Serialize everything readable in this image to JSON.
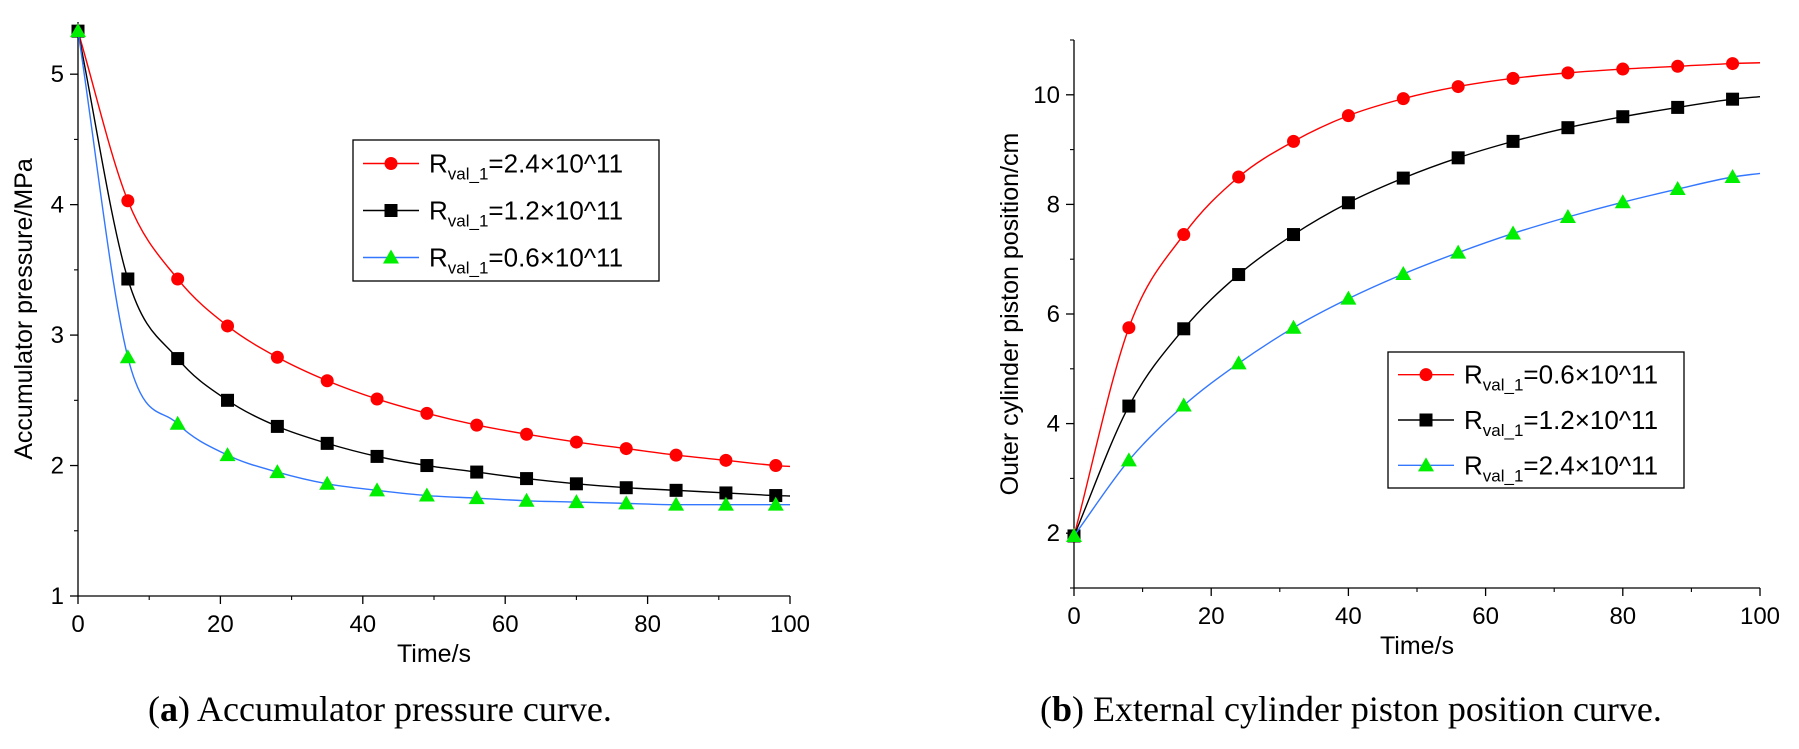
{
  "chart_data": [
    {
      "type": "line",
      "title": "",
      "xlabel": "Time/s",
      "ylabel": "Accumulator pressure/MPa",
      "xlim": [
        0,
        100
      ],
      "ylim": [
        1,
        5.4
      ],
      "xticks": [
        0,
        20,
        40,
        60,
        80,
        100
      ],
      "yticks": [
        1,
        2,
        3,
        4,
        5
      ],
      "xtick_labels": [
        "0",
        "20",
        "40",
        "60",
        "80",
        "100"
      ],
      "ytick_labels": [
        "1",
        "2",
        "3",
        "4",
        "5"
      ],
      "grid": false,
      "legend_position": "upper-center",
      "series": [
        {
          "name": "R_val_1=2.4×10^11",
          "label_main": "R",
          "label_sub": "val_1",
          "label_rest": "=2.4×10^11",
          "color": "#ff0000",
          "marker": "circle",
          "x": [
            0,
            7,
            14,
            21,
            28,
            35,
            42,
            49,
            56,
            63,
            70,
            77,
            84,
            91,
            98
          ],
          "y": [
            5.33,
            4.03,
            3.43,
            3.07,
            2.83,
            2.65,
            2.51,
            2.4,
            2.31,
            2.24,
            2.18,
            2.13,
            2.08,
            2.04,
            2.0
          ]
        },
        {
          "name": "R_val_1=1.2×10^11",
          "label_main": "R",
          "label_sub": "val_1",
          "label_rest": "=1.2×10^11",
          "color": "#000000",
          "marker": "square",
          "x": [
            0,
            7,
            14,
            21,
            28,
            35,
            42,
            49,
            56,
            63,
            70,
            77,
            84,
            91,
            98
          ],
          "y": [
            5.33,
            3.43,
            2.82,
            2.5,
            2.3,
            2.17,
            2.07,
            2.0,
            1.95,
            1.9,
            1.86,
            1.83,
            1.81,
            1.79,
            1.77
          ]
        },
        {
          "name": "R_val_1=0.6×10^11",
          "label_main": "R",
          "label_sub": "val_1",
          "label_rest": "=0.6×10^11",
          "color": "#3377ff",
          "marker_color": "#00ee00",
          "marker": "triangle",
          "x": [
            0,
            7,
            14,
            21,
            28,
            35,
            42,
            49,
            56,
            63,
            70,
            77,
            84,
            91,
            98
          ],
          "y": [
            5.33,
            2.83,
            2.32,
            2.08,
            1.95,
            1.86,
            1.81,
            1.77,
            1.75,
            1.73,
            1.72,
            1.71,
            1.7,
            1.7,
            1.7
          ]
        }
      ]
    },
    {
      "type": "line",
      "title": "",
      "xlabel": "Time/s",
      "ylabel": "Outer cylinder piston position/cm",
      "xlim": [
        0,
        100
      ],
      "ylim": [
        1,
        11
      ],
      "xticks": [
        0,
        20,
        40,
        60,
        80,
        100
      ],
      "yticks": [
        2,
        4,
        6,
        8,
        10
      ],
      "xtick_labels": [
        "0",
        "20",
        "40",
        "60",
        "80",
        "100"
      ],
      "ytick_labels": [
        "2",
        "4",
        "6",
        "8",
        "10"
      ],
      "grid": false,
      "legend_position": "lower-right",
      "series": [
        {
          "name": "R_val_1=0.6×10^11",
          "label_main": "R",
          "label_sub": "val_1",
          "label_rest": "=0.6×10^11",
          "color": "#ff0000",
          "marker": "circle",
          "x": [
            0,
            8,
            16,
            24,
            32,
            40,
            48,
            56,
            64,
            72,
            80,
            88,
            96
          ],
          "y": [
            1.95,
            5.75,
            7.45,
            8.5,
            9.15,
            9.62,
            9.93,
            10.15,
            10.3,
            10.4,
            10.47,
            10.52,
            10.57
          ]
        },
        {
          "name": "R_val_1=1.2×10^11",
          "label_main": "R",
          "label_sub": "val_1",
          "label_rest": "=1.2×10^11",
          "color": "#000000",
          "marker": "square",
          "x": [
            0,
            8,
            16,
            24,
            32,
            40,
            48,
            56,
            64,
            72,
            80,
            88,
            96
          ],
          "y": [
            1.95,
            4.32,
            5.73,
            6.72,
            7.45,
            8.03,
            8.48,
            8.85,
            9.15,
            9.4,
            9.6,
            9.77,
            9.92
          ]
        },
        {
          "name": "R_val_1=2.4×10^11",
          "label_main": "R",
          "label_sub": "val_1",
          "label_rest": "=2.4×10^11",
          "color": "#3377ff",
          "marker_color": "#00ee00",
          "marker": "triangle",
          "x": [
            0,
            8,
            16,
            24,
            32,
            40,
            48,
            56,
            64,
            72,
            80,
            88,
            96
          ],
          "y": [
            1.95,
            3.33,
            4.33,
            5.1,
            5.75,
            6.28,
            6.73,
            7.12,
            7.47,
            7.77,
            8.04,
            8.28,
            8.5
          ]
        }
      ]
    }
  ],
  "captions": {
    "a_label": "a",
    "a_text": " Accumulator pressure curve.",
    "b_label": "b",
    "b_text": " External cylinder piston position curve."
  }
}
